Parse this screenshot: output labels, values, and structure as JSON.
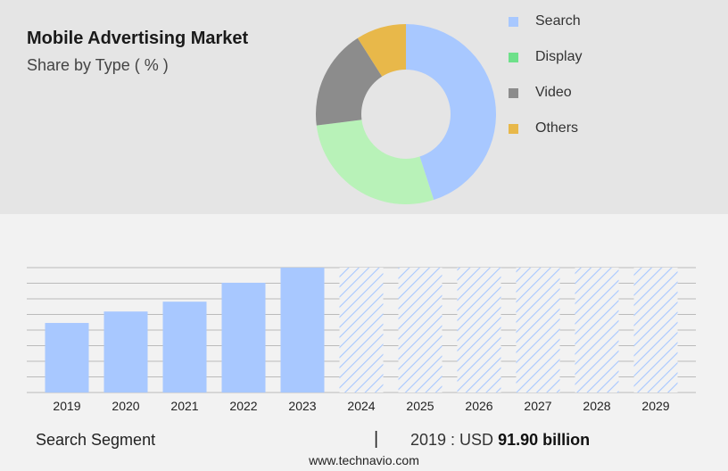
{
  "title": "Mobile Advertising Market",
  "subtitle": "Share by Type ( % )",
  "colors": {
    "search": "#a8c8ff",
    "display": "#b8f2b8",
    "video": "#8c8c8c",
    "others": "#e8b84a",
    "legend_display": "#6ee08a",
    "legend_video": "#8c8c8c",
    "forecast_hatch": "#a8c8ff",
    "grid": "#bbbbbb"
  },
  "legend": [
    {
      "label": "Search",
      "color": "#a8c8ff"
    },
    {
      "label": "Display",
      "color": "#6ee08a"
    },
    {
      "label": "Video",
      "color": "#8c8c8c"
    },
    {
      "label": "Others",
      "color": "#e8b84a"
    }
  ],
  "chart_data": [
    {
      "type": "pie",
      "labels": [
        "Search",
        "Display",
        "Video",
        "Others"
      ],
      "values": [
        45,
        28,
        18,
        9
      ],
      "donut": true
    },
    {
      "type": "bar",
      "categories": [
        "2019",
        "2020",
        "2021",
        "2022",
        "2023",
        "2024",
        "2025",
        "2026",
        "2027",
        "2028",
        "2029"
      ],
      "values": [
        91.9,
        107,
        120,
        145,
        165,
        null,
        null,
        null,
        null,
        null,
        null
      ],
      "forecast_categories": [
        "2024",
        "2025",
        "2026",
        "2027",
        "2028",
        "2029"
      ],
      "ylim": [
        0,
        165
      ],
      "grid": true
    }
  ],
  "footer": {
    "segment": "Search Segment",
    "divider": "|",
    "year_prefix": "2019 : USD",
    "value": "91.90 billion",
    "url": "www.technavio.com"
  }
}
